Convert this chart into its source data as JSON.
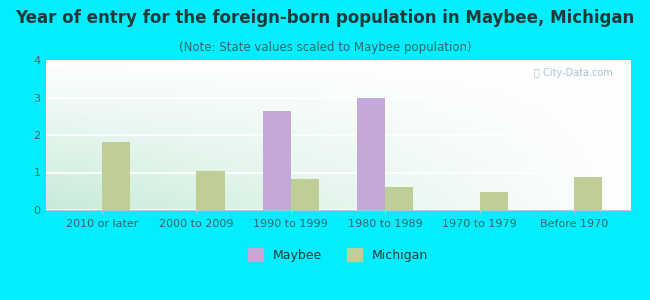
{
  "title": "Year of entry for the foreign-born population in Maybee, Michigan",
  "subtitle": "(Note: State values scaled to Maybee population)",
  "categories": [
    "2010 or later",
    "2000 to 2009",
    "1990 to 1999",
    "1980 to 1989",
    "1970 to 1979",
    "Before 1970"
  ],
  "maybee_values": [
    0,
    0,
    2.65,
    3.0,
    0,
    0
  ],
  "michigan_values": [
    1.82,
    1.05,
    0.82,
    0.62,
    0.48,
    0.88
  ],
  "maybee_color": "#c4a8d8",
  "michigan_color": "#bece96",
  "background_color": "#00eeff",
  "ylim": [
    0,
    4
  ],
  "yticks": [
    0,
    1,
    2,
    3,
    4
  ],
  "bar_width": 0.3,
  "title_fontsize": 12,
  "subtitle_fontsize": 8.5,
  "tick_fontsize": 8,
  "legend_fontsize": 9,
  "title_color": "#1a3a3a",
  "subtitle_color": "#336666",
  "tick_color": "#336666"
}
